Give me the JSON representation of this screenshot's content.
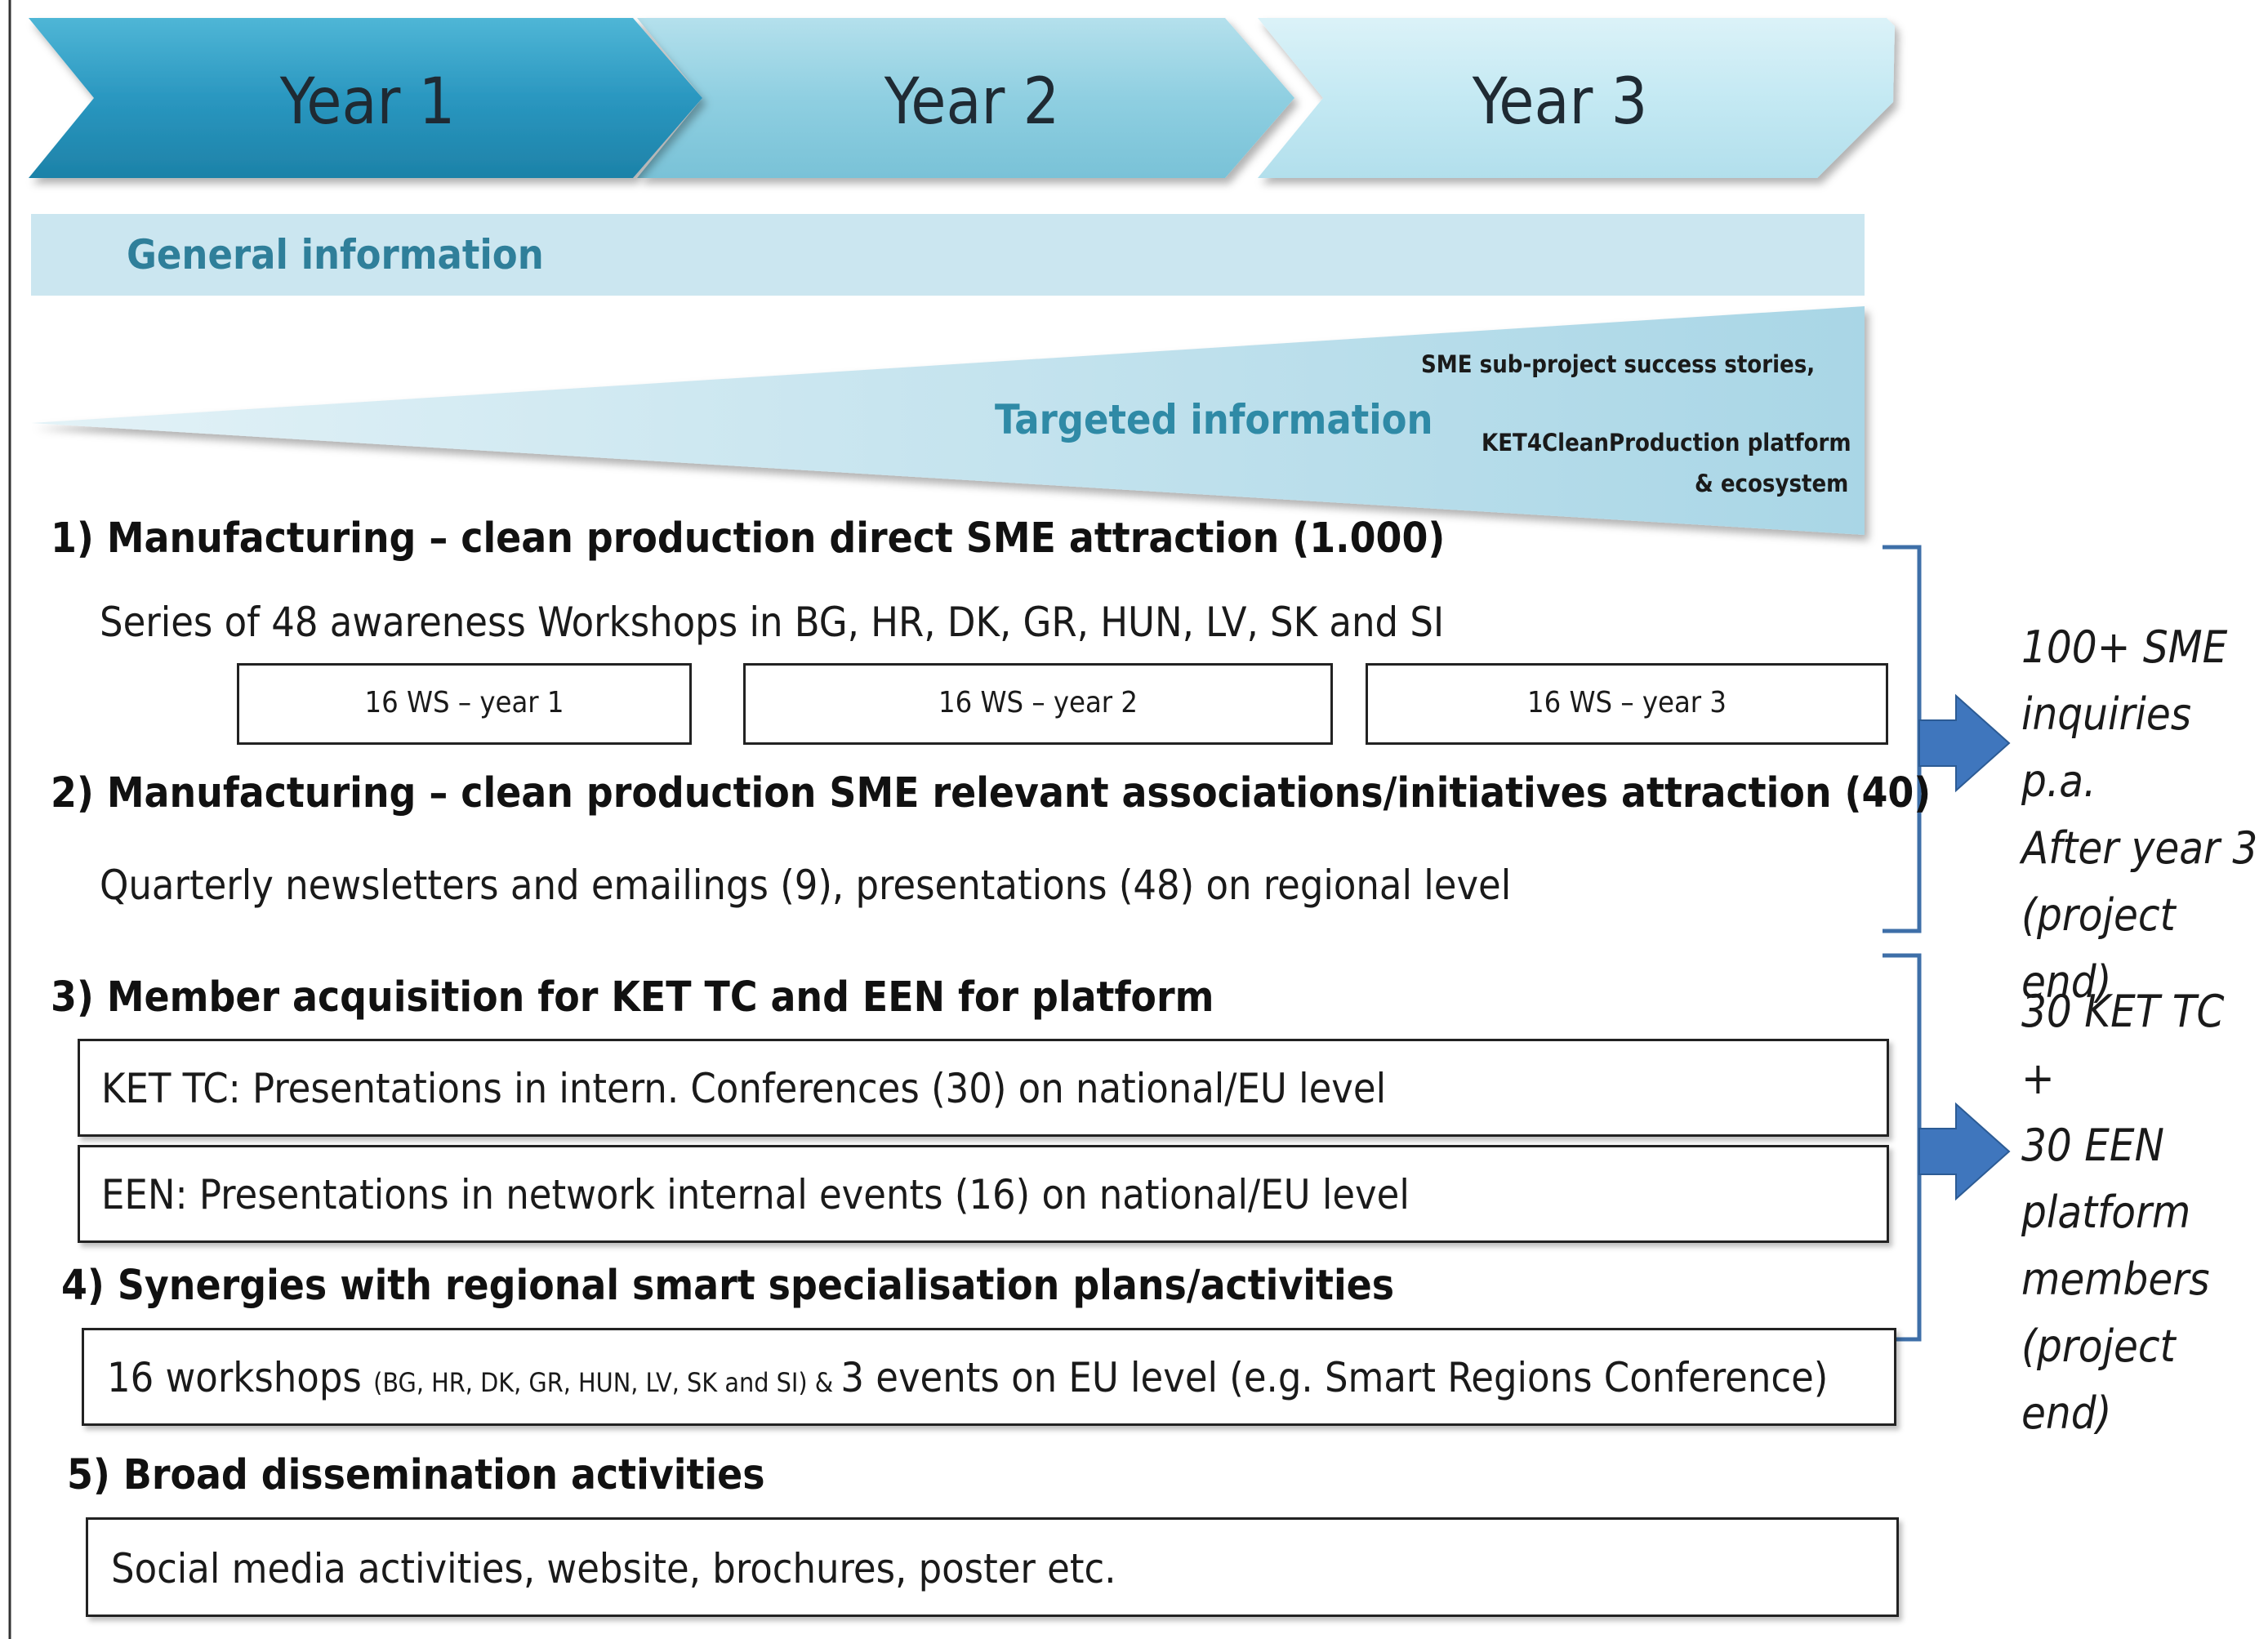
{
  "timeline": {
    "years": [
      "Year 1",
      "Year 2",
      "Year 3"
    ],
    "colors": [
      "#2b9cc4",
      "#8ecfe0",
      "#c3e8f2"
    ]
  },
  "bands": {
    "general": "General information",
    "targeted": "Targeted information",
    "targeted_note_1": "SME sub-project success stories,",
    "targeted_note_2": "KET4CleanProduction platform",
    "targeted_note_3": "& ecosystem"
  },
  "sections": {
    "s1_title": "1) Manufacturing – clean production direct SME attraction (1.000)",
    "s1_text": "Series of 48 awareness Workshops in BG, HR, DK, GR, HUN, LV, SK and SI",
    "s1_ws": [
      "16 WS – year 1",
      "16 WS – year 2",
      "16 WS – year 3"
    ],
    "s2_title": "2) Manufacturing – clean production SME relevant associations/initiatives attraction (40)",
    "s2_text": "Quarterly newsletters and emailings (9), presentations (48) on regional level",
    "s3_title": "3) Member acquisition for KET TC and EEN for platform",
    "s3_box1": "KET TC: Presentations in intern. Conferences  (30) on national/EU level",
    "s3_box2": "EEN: Presentations in network internal events (16) on national/EU level",
    "s4_title": "4) Synergies with regional smart specialisation plans/activities",
    "s4_box_a": "16 workshops ",
    "s4_box_b": "(BG, HR, DK, GR, HUN, LV, SK and SI) & ",
    "s4_box_c": " 3 events on EU level (e.g. Smart Regions Conference)",
    "s5_title": "5) Broad dissemination activities",
    "s5_box": "Social media activities, website, brochures, poster etc."
  },
  "results": {
    "r1": [
      "100+ SME",
      "inquiries p.a.",
      "After year 3",
      "(project end)"
    ],
    "r2": [
      "30 KET TC +",
      "30 EEN",
      "platform",
      "members",
      "(project end)"
    ]
  }
}
